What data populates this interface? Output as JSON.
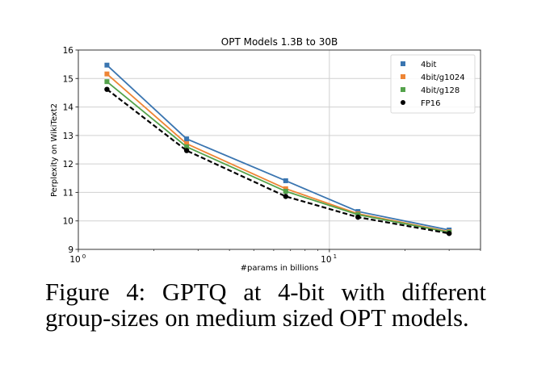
{
  "chart_data": {
    "type": "line",
    "title": "OPT Models 1.3B to 30B",
    "xlabel": "#params in billions",
    "ylabel": "Perplexity on WikiText2",
    "xscale": "log",
    "xlim": [
      1,
      40
    ],
    "ylim": [
      9,
      16
    ],
    "x_ticks": [
      {
        "value": 1,
        "label": "10",
        "exp": "0"
      },
      {
        "value": 10,
        "label": "10",
        "exp": "1"
      }
    ],
    "y_ticks": [
      9,
      10,
      11,
      12,
      13,
      14,
      15,
      16
    ],
    "grid": true,
    "legend_position": "top-right",
    "x": [
      1.3,
      2.7,
      6.7,
      13,
      30
    ],
    "series": [
      {
        "name": "4bit",
        "color": "#3a75b0",
        "marker": "square",
        "linestyle": "solid",
        "values": [
          15.47,
          12.88,
          11.41,
          10.33,
          9.68
        ]
      },
      {
        "name": "4bit/g1024",
        "color": "#ee8535",
        "marker": "square",
        "linestyle": "solid",
        "values": [
          15.16,
          12.71,
          11.13,
          10.25,
          9.62
        ]
      },
      {
        "name": "4bit/g128",
        "color": "#54a24b",
        "marker": "square",
        "linestyle": "solid",
        "values": [
          14.89,
          12.6,
          11.04,
          10.22,
          9.6
        ]
      },
      {
        "name": "FP16",
        "color": "#000000",
        "marker": "circle",
        "linestyle": "dashed",
        "values": [
          14.62,
          12.47,
          10.86,
          10.13,
          9.56
        ]
      }
    ]
  },
  "caption": {
    "line1": "Figure 4:  GPTQ at 4-bit with different",
    "line2": "group-sizes on medium sized OPT models."
  }
}
